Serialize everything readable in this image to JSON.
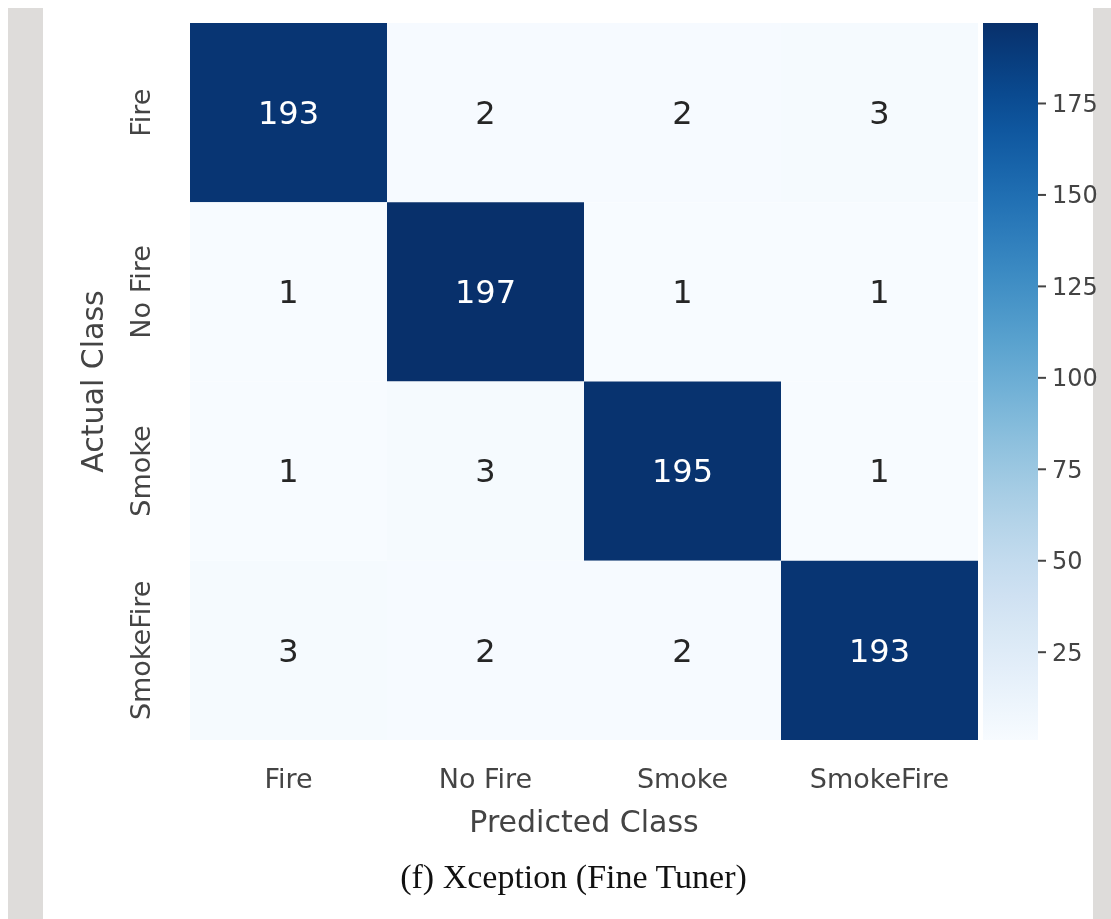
{
  "chart_data": {
    "type": "heatmap",
    "xlabel": "Predicted Class",
    "ylabel": "Actual Class",
    "categories": [
      "Fire",
      "No Fire",
      "Smoke",
      "SmokeFire"
    ],
    "y_categories": [
      "Fire",
      "No Fire",
      "Smoke",
      "SmokeFire"
    ],
    "cells": [
      [
        193,
        2,
        2,
        3
      ],
      [
        1,
        197,
        1,
        1
      ],
      [
        1,
        3,
        195,
        1
      ],
      [
        3,
        2,
        2,
        193
      ]
    ],
    "data_labels": true,
    "clim": [
      1,
      197
    ],
    "cticks": [
      25,
      50,
      75,
      100,
      125,
      150,
      175
    ],
    "annotations": [
      "(f) Xception (Fine Tuner)"
    ]
  }
}
